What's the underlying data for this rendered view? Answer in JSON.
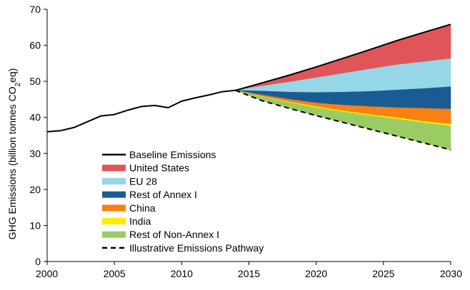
{
  "chart_data": {
    "type": "area",
    "title": "",
    "xlabel": "",
    "ylabel_parts": [
      "GHG Emissions (billion tonnes CO",
      "2",
      "eq)"
    ],
    "xlim": [
      2000,
      2030
    ],
    "ylim": [
      0,
      70
    ],
    "xticks": [
      2000,
      2005,
      2010,
      2015,
      2020,
      2025,
      2030
    ],
    "yticks": [
      0,
      10,
      20,
      30,
      40,
      50,
      60,
      70
    ],
    "xtick_labels": [
      "2000",
      "2005",
      "2010",
      "2015",
      "2020",
      "2025",
      "2030"
    ],
    "ytick_labels": [
      "0",
      "10",
      "20",
      "30",
      "40",
      "50",
      "60",
      "70"
    ],
    "grid": false,
    "legend_position": "lower-left",
    "historical": {
      "x": [
        2000,
        2001,
        2002,
        2003,
        2004,
        2005,
        2006,
        2007,
        2008,
        2009,
        2010,
        2011,
        2012,
        2013,
        2014
      ],
      "y": [
        36.0,
        36.3,
        37.2,
        38.8,
        40.4,
        40.8,
        42.0,
        43.0,
        43.3,
        42.7,
        44.5,
        45.4,
        46.2,
        47.1,
        47.5
      ]
    },
    "baseline": {
      "name": "Baseline Emissions",
      "x": [
        2014,
        2016,
        2018,
        2020,
        2022,
        2024,
        2026,
        2028,
        2030
      ],
      "y": [
        47.5,
        49.6,
        51.7,
        54.0,
        56.4,
        58.8,
        61.3,
        63.6,
        65.8
      ]
    },
    "pathway": {
      "name": "Illustrative Emissions Pathway",
      "x": [
        2014,
        2016,
        2018,
        2020,
        2022,
        2024,
        2026,
        2028,
        2030
      ],
      "y": [
        47.5,
        44.6,
        42.5,
        40.5,
        38.6,
        36.7,
        34.8,
        32.9,
        31.0
      ]
    },
    "wedge_x": [
      2014,
      2016,
      2018,
      2020,
      2022,
      2024,
      2026,
      2028,
      2030
    ],
    "series": [
      {
        "name": "United States",
        "color": "#e05559",
        "upper": [
          47.5,
          49.6,
          51.7,
          54.0,
          56.4,
          58.8,
          61.3,
          63.6,
          65.8
        ],
        "lower": [
          47.5,
          48.7,
          49.8,
          51.0,
          52.2,
          53.4,
          54.6,
          55.4,
          56.3
        ]
      },
      {
        "name": "EU 28",
        "color": "#95d7e6",
        "upper": [
          47.5,
          48.7,
          49.8,
          51.0,
          52.2,
          53.4,
          54.6,
          55.4,
          56.3
        ],
        "lower": [
          47.5,
          47.3,
          47.0,
          46.9,
          47.0,
          47.2,
          47.6,
          48.0,
          48.5
        ]
      },
      {
        "name": "Rest of Annex I",
        "color": "#1b5b94",
        "upper": [
          47.5,
          47.3,
          47.0,
          46.9,
          47.0,
          47.2,
          47.6,
          48.0,
          48.5
        ],
        "lower": [
          47.5,
          46.2,
          45.0,
          44.0,
          43.4,
          43.0,
          42.7,
          42.5,
          42.3
        ]
      },
      {
        "name": "China",
        "color": "#f78112",
        "upper": [
          47.5,
          46.2,
          45.0,
          44.0,
          43.4,
          43.0,
          42.7,
          42.5,
          42.3
        ],
        "lower": [
          47.5,
          45.8,
          44.3,
          43.0,
          41.8,
          40.8,
          39.9,
          38.9,
          38.1
        ]
      },
      {
        "name": "India",
        "color": "#ffed00",
        "upper": [
          47.5,
          45.8,
          44.3,
          43.0,
          41.8,
          40.8,
          39.9,
          38.9,
          38.1
        ],
        "lower": [
          47.5,
          45.7,
          44.1,
          42.7,
          41.5,
          40.5,
          39.5,
          38.5,
          37.6
        ]
      },
      {
        "name": "Rest of Non-Annex I",
        "color": "#9bcc63",
        "upper": [
          47.5,
          45.7,
          44.1,
          42.7,
          41.5,
          40.5,
          39.5,
          38.5,
          37.6
        ],
        "lower": [
          47.5,
          44.6,
          42.5,
          40.5,
          38.6,
          36.7,
          34.8,
          32.9,
          31.0
        ]
      }
    ]
  }
}
